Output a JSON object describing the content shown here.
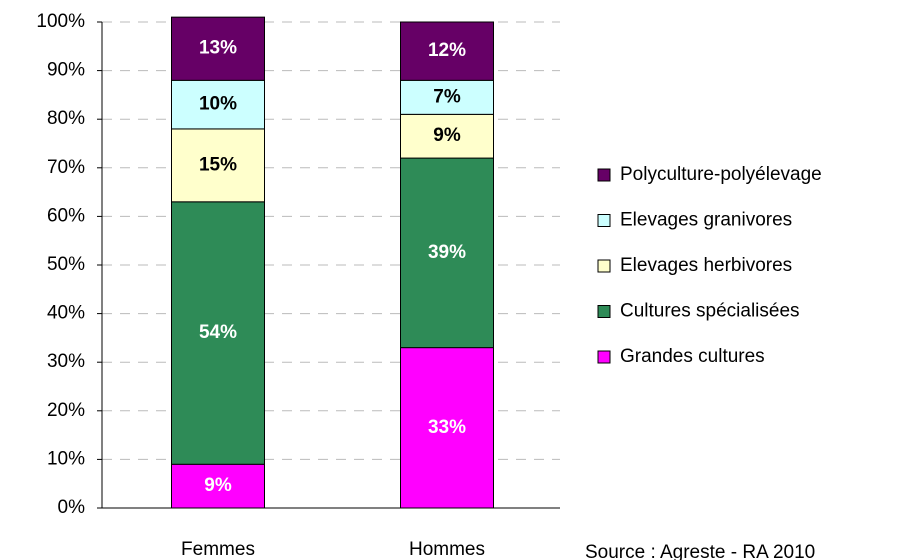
{
  "chart_data": {
    "type": "stacked_bar",
    "categories": [
      "Femmes",
      "Hommes"
    ],
    "series": [
      {
        "name": "Grandes cultures",
        "color": "#ff00ff",
        "label_color": "#ffffff",
        "values": [
          9,
          33
        ],
        "value_labels": [
          "9%",
          "33%"
        ]
      },
      {
        "name": "Cultures spécialisées",
        "color": "#2e8b57",
        "label_color": "#ffffff",
        "values": [
          54,
          39
        ],
        "value_labels": [
          "54%",
          "39%"
        ]
      },
      {
        "name": "Elevages herbivores",
        "color": "#ffffcc",
        "label_color": "#000000",
        "values": [
          15,
          9
        ],
        "value_labels": [
          "15%",
          "9%"
        ]
      },
      {
        "name": "Elevages granivores",
        "color": "#ccffff",
        "label_color": "#000000",
        "values": [
          10,
          7
        ],
        "value_labels": [
          "10%",
          "7%"
        ]
      },
      {
        "name": "Polyculture-polyélevage",
        "color": "#660066",
        "label_color": "#ffffff",
        "values": [
          13,
          12
        ],
        "value_labels": [
          "13%",
          "12%"
        ]
      }
    ],
    "ylim": [
      0,
      100
    ],
    "yticks": [
      {
        "value": 0,
        "label": "0%"
      },
      {
        "value": 10,
        "label": "10%"
      },
      {
        "value": 20,
        "label": "20%"
      },
      {
        "value": 30,
        "label": "30%"
      },
      {
        "value": 40,
        "label": "40%"
      },
      {
        "value": 50,
        "label": "50%"
      },
      {
        "value": 60,
        "label": "60%"
      },
      {
        "value": 70,
        "label": "70%"
      },
      {
        "value": 80,
        "label": "80%"
      },
      {
        "value": 90,
        "label": "90%"
      },
      {
        "value": 100,
        "label": "100%"
      }
    ],
    "grid": true,
    "legend": "right",
    "source": "Source : Agreste - RA 2010"
  }
}
